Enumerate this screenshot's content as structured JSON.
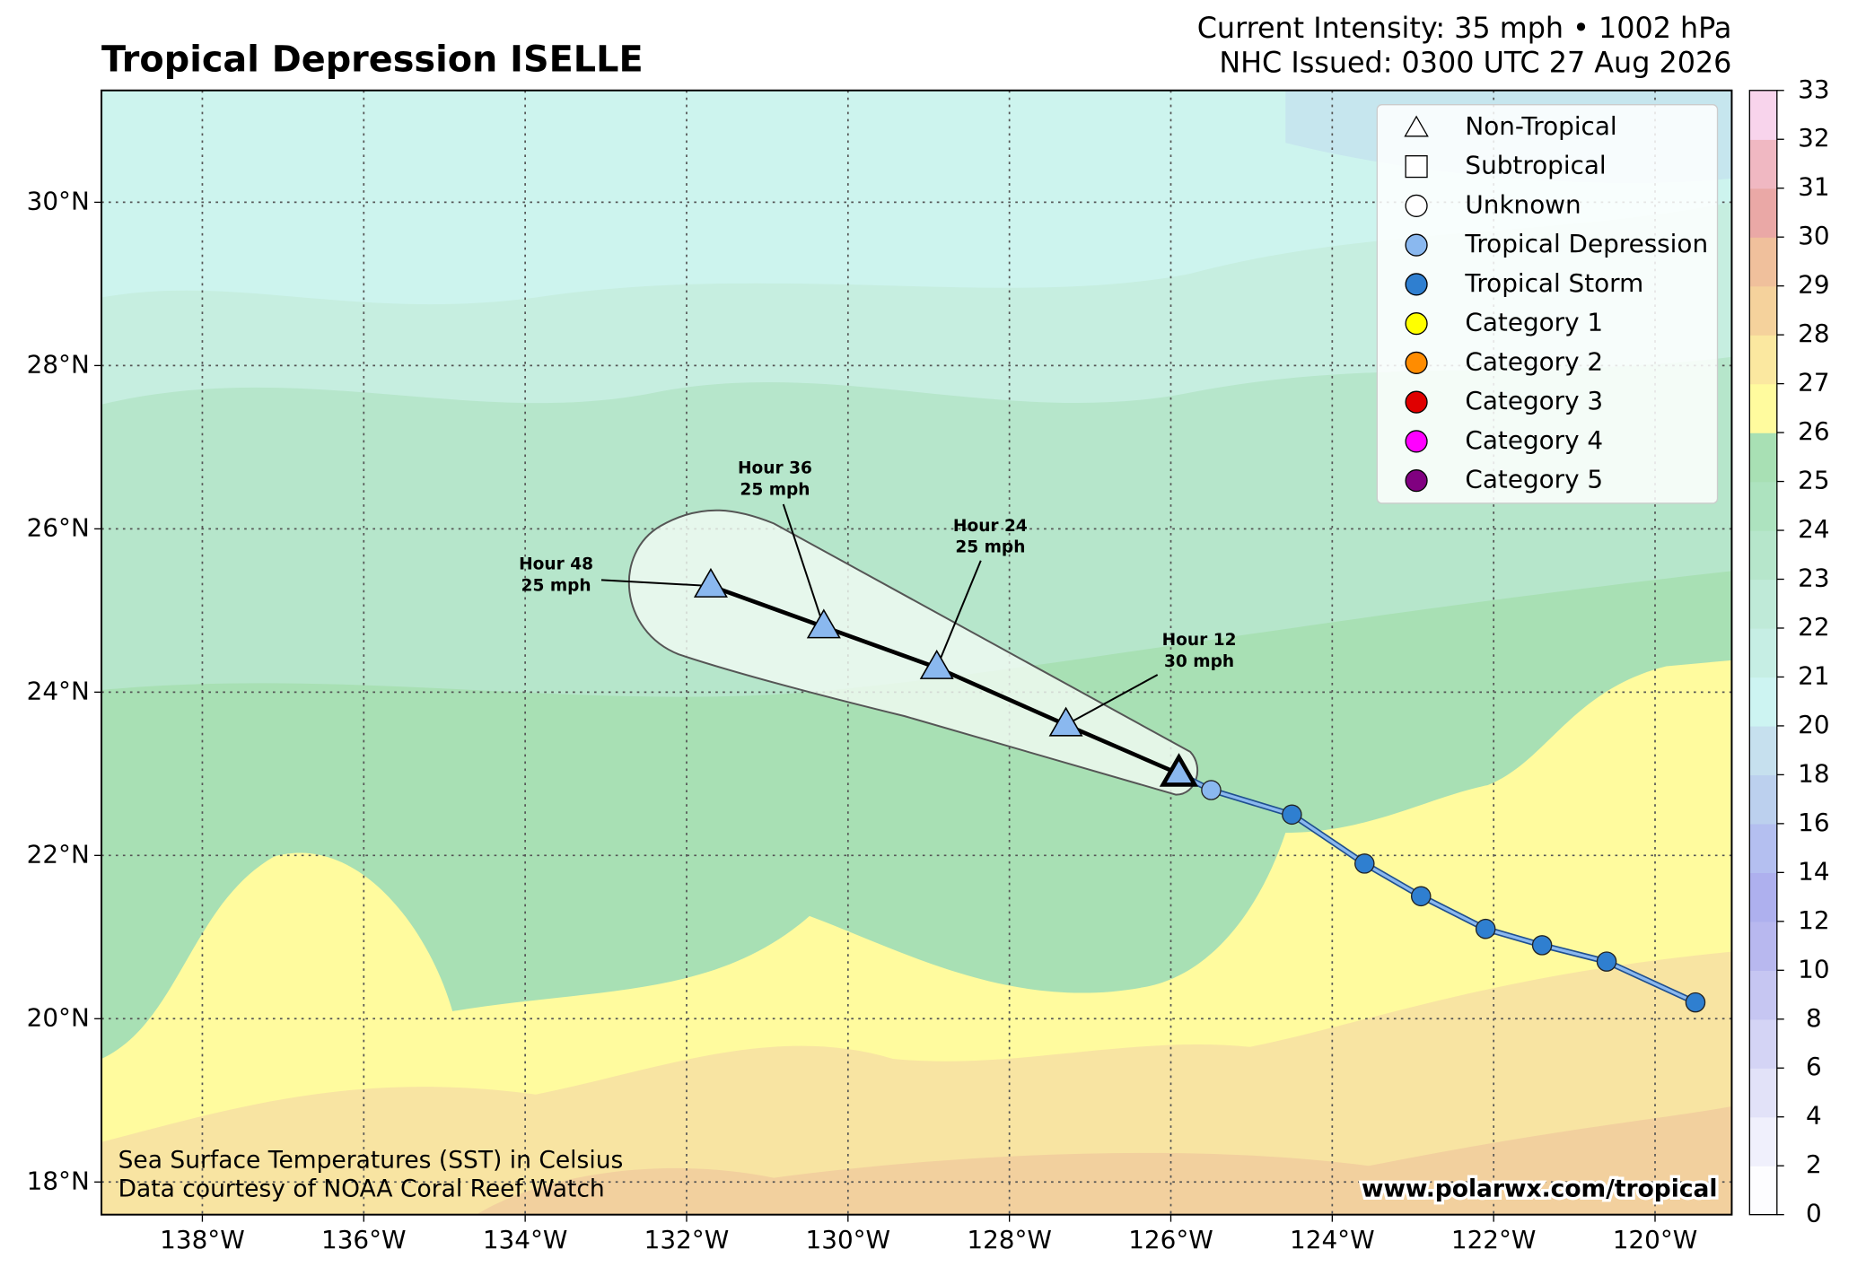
{
  "header": {
    "title": "Tropical Depression ISELLE",
    "intensity": "Current Intensity: 35 mph • 1002 hPa",
    "issued": "NHC Issued: 0300 UTC 27 Aug 2026"
  },
  "map": {
    "lon_range": [
      -139.25,
      -119.05
    ],
    "lat_range": [
      17.6,
      31.37
    ],
    "grid": true,
    "lon_ticks": [
      {
        "value": -138,
        "label": "138°W"
      },
      {
        "value": -136,
        "label": "136°W"
      },
      {
        "value": -134,
        "label": "134°W"
      },
      {
        "value": -132,
        "label": "132°W"
      },
      {
        "value": -130,
        "label": "130°W"
      },
      {
        "value": -128,
        "label": "128°W"
      },
      {
        "value": -126,
        "label": "126°W"
      },
      {
        "value": -124,
        "label": "124°W"
      },
      {
        "value": -122,
        "label": "122°W"
      },
      {
        "value": -120,
        "label": "120°W"
      }
    ],
    "lat_ticks": [
      {
        "value": 18,
        "label": "18°N"
      },
      {
        "value": 20,
        "label": "20°N"
      },
      {
        "value": 22,
        "label": "22°N"
      },
      {
        "value": 24,
        "label": "24°N"
      },
      {
        "value": 26,
        "label": "26°N"
      },
      {
        "value": 28,
        "label": "28°N"
      },
      {
        "value": 30,
        "label": "30°N"
      }
    ]
  },
  "track": [
    {
      "lon": -125.5,
      "lat": 22.8,
      "color": "#8ab8ef"
    },
    {
      "lon": -124.5,
      "lat": 22.5,
      "color": "#2f7fd0"
    },
    {
      "lon": -123.6,
      "lat": 21.9,
      "color": "#2f7fd0"
    },
    {
      "lon": -122.9,
      "lat": 21.5,
      "color": "#2f7fd0"
    },
    {
      "lon": -122.1,
      "lat": 21.1,
      "color": "#2f7fd0"
    },
    {
      "lon": -121.4,
      "lat": 20.9,
      "color": "#2f7fd0"
    },
    {
      "lon": -120.6,
      "lat": 20.7,
      "color": "#2f7fd0"
    },
    {
      "lon": -119.5,
      "lat": 20.2,
      "color": "#2f7fd0"
    }
  ],
  "current": {
    "lon": -125.9,
    "lat": 23.0
  },
  "forecast": [
    {
      "lon": -127.3,
      "lat": 23.6,
      "hour": "Hour 12",
      "wind": "30 mph"
    },
    {
      "lon": -128.9,
      "lat": 24.3,
      "hour": "Hour 24",
      "wind": "25 mph"
    },
    {
      "lon": -130.3,
      "lat": 24.8,
      "hour": "Hour 36",
      "wind": "25 mph"
    },
    {
      "lon": -131.7,
      "lat": 25.3,
      "hour": "Hour 48",
      "wind": "25 mph"
    }
  ],
  "legend": [
    {
      "label": "Non-Tropical",
      "shape": "triangle",
      "color": "#ffffff"
    },
    {
      "label": "Subtropical",
      "shape": "square",
      "color": "#ffffff"
    },
    {
      "label": "Unknown",
      "shape": "circle",
      "color": "#ffffff"
    },
    {
      "label": "Tropical Depression",
      "shape": "circle",
      "color": "#8ab8ef"
    },
    {
      "label": "Tropical Storm",
      "shape": "circle",
      "color": "#2f7fd0"
    },
    {
      "label": "Category 1",
      "shape": "circle",
      "color": "#ffff00"
    },
    {
      "label": "Category 2",
      "shape": "circle",
      "color": "#ff8c00"
    },
    {
      "label": "Category 3",
      "shape": "circle",
      "color": "#e00000"
    },
    {
      "label": "Category 4",
      "shape": "circle",
      "color": "#ff00ff"
    },
    {
      "label": "Category 5",
      "shape": "circle",
      "color": "#800080"
    }
  ],
  "colorbar": {
    "ticks": [
      0,
      2,
      4,
      6,
      8,
      10,
      12,
      14,
      16,
      18,
      20,
      21,
      22,
      23,
      24,
      25,
      26,
      27,
      28,
      29,
      30,
      31,
      32,
      33
    ],
    "colors": [
      "#fdfdff",
      "#f0f0fc",
      "#e2e2f8",
      "#d4d4f5",
      "#c6c6f2",
      "#b8b8ef",
      "#aeb0ee",
      "#b4bff0",
      "#bcd0ee",
      "#c6e0ee",
      "#cdf4f2",
      "#c6eee4",
      "#bfead8",
      "#b6e6cb",
      "#ade3bf",
      "#a8e0b4",
      "#fffb9e",
      "#fbe8a0",
      "#f5d29c",
      "#f0c09c",
      "#eaa8a6",
      "#f0b8c2",
      "#f8d4ec"
    ]
  },
  "credits": {
    "sst": "Sea Surface Temperatures (SST) in Celsius",
    "source": "Data courtesy of NOAA Coral Reef Watch",
    "site": "www.polarwx.com/tropical"
  }
}
